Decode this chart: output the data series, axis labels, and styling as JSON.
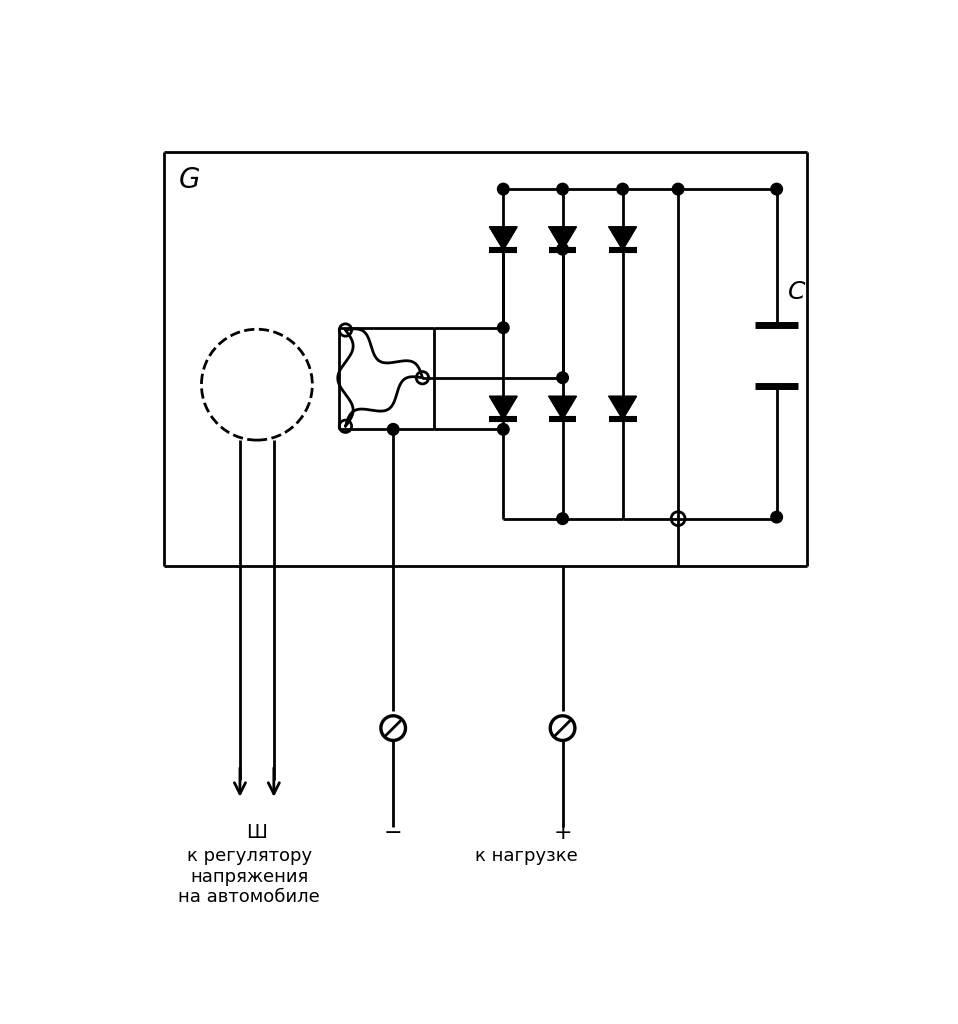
{
  "bg": "#ffffff",
  "lc": "#000000",
  "lw": 2.0,
  "G_label": "G",
  "C_label": "C",
  "sh_label": "Ш",
  "minus_label": "−",
  "plus_label": "+",
  "left_text": [
    "к регулятору",
    "напряжения",
    "на автомобиле"
  ],
  "right_text": "к нагрузке"
}
